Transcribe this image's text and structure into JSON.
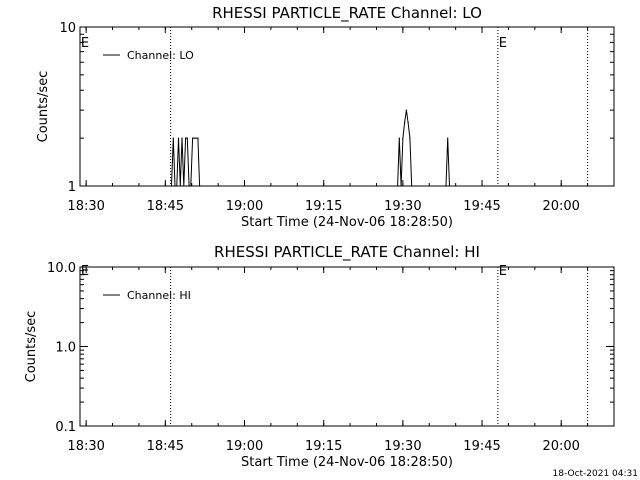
{
  "timestamp": "18-Oct-2021 04:31",
  "chart_data": [
    {
      "type": "line",
      "title": "RHESSI PARTICLE_RATE Channel: LO",
      "xlabel": "Start Time (24-Nov-06 18:28:50)",
      "ylabel": "Counts/sec",
      "yscale": "log",
      "ylim": [
        1,
        10
      ],
      "yticks": [
        "1",
        "10"
      ],
      "xlim": [
        "18:28:50",
        "20:10:00"
      ],
      "xticks": [
        "18:30",
        "18:45",
        "19:00",
        "19:15",
        "19:30",
        "19:45",
        "20:00"
      ],
      "event_lines": [
        "18:46:00",
        "19:48:00",
        "20:05:00"
      ],
      "event_labels": [
        "E",
        "E"
      ],
      "series": [
        {
          "name": "Channel: LO",
          "x": [
            "18:46:10",
            "18:46:30",
            "18:46:50",
            "18:47:10",
            "18:47:30",
            "18:47:50",
            "18:48:10",
            "18:48:30",
            "18:48:50",
            "18:49:10",
            "18:49:30",
            "18:49:50",
            "18:50:10",
            "18:50:30",
            "18:50:50",
            "18:51:10",
            "18:51:30",
            "19:29:00",
            "19:29:20",
            "19:29:40",
            "19:30:00",
            "19:30:20",
            "19:30:40",
            "19:31:00",
            "19:31:20",
            "19:31:40",
            "19:38:10",
            "19:38:30",
            "19:38:50"
          ],
          "values": [
            1,
            2,
            1,
            1,
            2,
            1,
            2,
            1,
            2,
            2,
            1,
            1,
            2,
            2,
            2,
            2,
            1,
            1,
            2,
            1,
            2,
            2.5,
            3,
            2.5,
            2,
            1,
            1,
            2,
            1
          ]
        }
      ]
    },
    {
      "type": "line",
      "title": "RHESSI PARTICLE_RATE Channel: HI",
      "xlabel": "Start Time (24-Nov-06 18:28:50)",
      "ylabel": "Counts/sec",
      "yscale": "log",
      "ylim": [
        0.1,
        10
      ],
      "yticks": [
        "0.1",
        "1.0",
        "10.0"
      ],
      "xlim": [
        "18:28:50",
        "20:10:00"
      ],
      "xticks": [
        "18:30",
        "18:45",
        "19:00",
        "19:15",
        "19:30",
        "19:45",
        "20:00"
      ],
      "event_lines": [
        "18:46:00",
        "19:48:00",
        "20:05:00"
      ],
      "event_labels": [
        "E",
        "E"
      ],
      "series": [
        {
          "name": "Channel: HI",
          "x": [],
          "values": []
        }
      ]
    }
  ]
}
